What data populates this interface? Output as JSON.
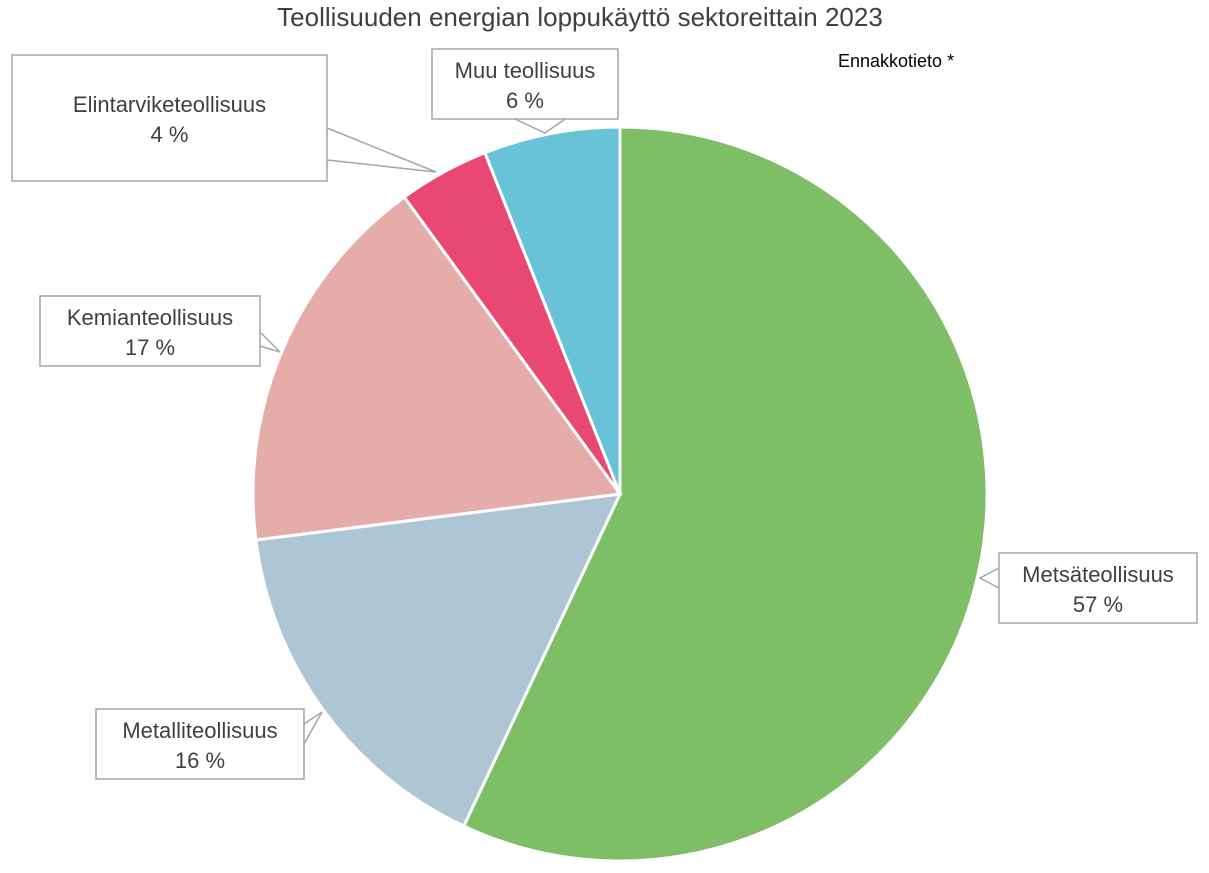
{
  "title": "Teollisuuden energian loppukäyttö sektoreittain 2023",
  "note": "Ennakkotieto *",
  "chart_data": {
    "type": "pie",
    "title": "Teollisuuden energian loppukäyttö sektoreittain 2023",
    "legend": "none",
    "slices": [
      {
        "name": "Metsäteollisuus",
        "value": 57,
        "label": "57 %",
        "color": "#7dbe67"
      },
      {
        "name": "Metalliteollisuus",
        "value": 16,
        "label": "16 %",
        "color": "#aec5d3"
      },
      {
        "name": "Kemianteollisuus",
        "value": 17,
        "label": "17 %",
        "color": "#e5aca9"
      },
      {
        "name": "Elintarviketeollisuus",
        "value": 4,
        "label": "4 %",
        "color": "#e94872"
      },
      {
        "name": "Muu teollisuus",
        "value": 6,
        "label": "6 %",
        "color": "#68c3d9"
      }
    ]
  }
}
